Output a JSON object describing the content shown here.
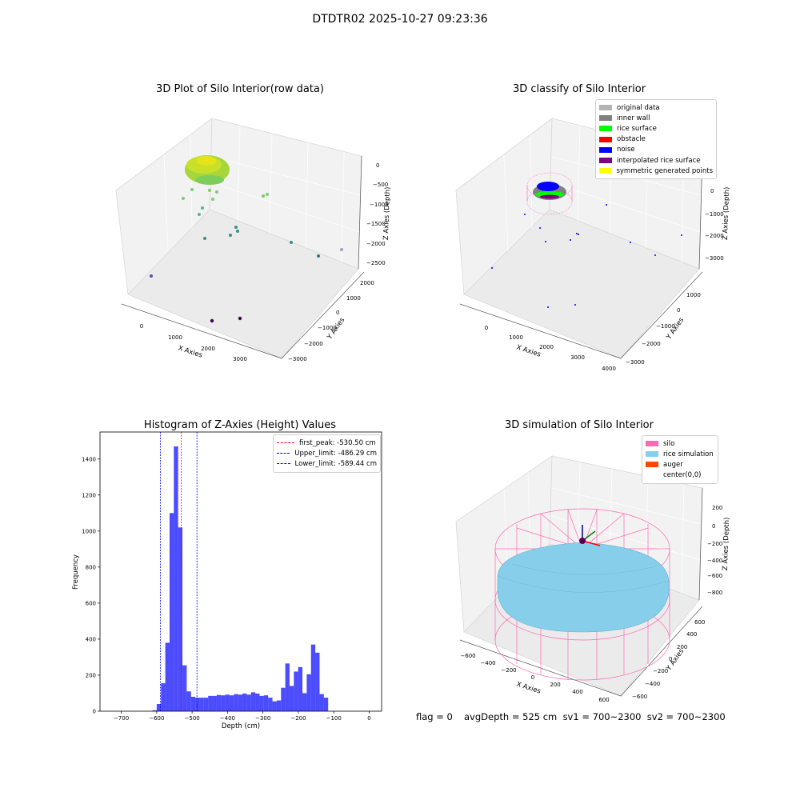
{
  "suptitle": "DTDTR02 2025-10-27 09:23:36",
  "panels": {
    "raw": {
      "title": "3D Plot of Silo Interior(row data)",
      "xlabel": "X Axies",
      "ylabel": "Y Axies",
      "zlabel": "Z Axies (Depth)",
      "xticks": [
        "0",
        "1000",
        "2000",
        "3000"
      ],
      "yticks": [
        "2000",
        "1000",
        "0",
        "−1000",
        "−2000",
        "−3000"
      ],
      "zticks": [
        "0",
        "−500",
        "−1000",
        "−1500",
        "−2000",
        "−2500"
      ]
    },
    "classify": {
      "title": "3D classify of Silo Interior",
      "xlabel": "X Axies",
      "ylabel": "Y Axies",
      "zlabel": "Z Axies (Depth)",
      "xticks": [
        "0",
        "1000",
        "2000",
        "3000",
        "4000"
      ],
      "yticks": [
        "1000",
        "0",
        "−1000",
        "−2000",
        "−3000"
      ],
      "zticks": [
        "0",
        "−1000",
        "−2000",
        "−3000"
      ],
      "ztick_partial": "00",
      "legend": [
        {
          "label": "original data",
          "color": "#b3b3b3"
        },
        {
          "label": "inner wall",
          "color": "#808080"
        },
        {
          "label": "rice surface",
          "color": "#00ff00"
        },
        {
          "label": "obstacle",
          "color": "#ff0000"
        },
        {
          "label": "noise",
          "color": "#0000ff"
        },
        {
          "label": "interpolated rice surface",
          "color": "#800080"
        },
        {
          "label": "symmetric generated points",
          "color": "#ffff00"
        }
      ]
    },
    "simulation": {
      "title": "3D simulation of Silo Interior",
      "xlabel": "X Axies",
      "ylabel": "Y Axies",
      "zlabel": "Z Axies (Depth)",
      "xticks": [
        "−600",
        "−400",
        "−200",
        "0",
        "200",
        "400",
        "600"
      ],
      "yticks": [
        "600",
        "400",
        "200",
        "0",
        "−200",
        "−400",
        "−600"
      ],
      "zticks": [
        "200",
        "0",
        "−200",
        "−400",
        "−600",
        "−800"
      ],
      "legend": [
        {
          "label": "silo",
          "color": "#ff69b4"
        },
        {
          "label": "rice simulation",
          "color": "#87ceeb"
        },
        {
          "label": "auger",
          "color": "#ff4500"
        },
        {
          "label": "center(0,0)",
          "color": "#ffffff"
        }
      ]
    }
  },
  "chart_data": {
    "type": "bar",
    "title": "Histogram of Z-Axies (Height) Values",
    "xlabel": "Depth (cm)",
    "ylabel": "Frequency",
    "xlim": [
      -760,
      35
    ],
    "ylim": [
      0,
      1550
    ],
    "xticks": [
      -700,
      -600,
      -500,
      -400,
      -300,
      -200,
      -100,
      0
    ],
    "yticks": [
      0,
      200,
      400,
      600,
      800,
      1000,
      1200,
      1400
    ],
    "bar_color": "#0000ff",
    "bin_edges_start": -612,
    "bin_width": 12.1,
    "values": [
      5,
      40,
      155,
      380,
      1100,
      1470,
      1020,
      255,
      110,
      80,
      75,
      75,
      75,
      85,
      85,
      90,
      88,
      92,
      88,
      95,
      92,
      98,
      92,
      105,
      98,
      85,
      88,
      75,
      55,
      60,
      130,
      265,
      140,
      220,
      245,
      100,
      205,
      370,
      325,
      95,
      75
    ],
    "lines": [
      {
        "label": "first_peak: -530.50 cm",
        "x": -530.5,
        "color": "#ff0000"
      },
      {
        "label": "Upper_limit: -486.29 cm",
        "x": -486.29,
        "color": "#0000ff"
      },
      {
        "label": "Lower_limit: -589.44 cm",
        "x": -589.44,
        "color": "#0000ff"
      }
    ]
  },
  "footer": {
    "flag": "flag = 0",
    "stats": "avgDepth = 525 cm  sv1 = 700~2300  sv2 = 700~2300"
  }
}
